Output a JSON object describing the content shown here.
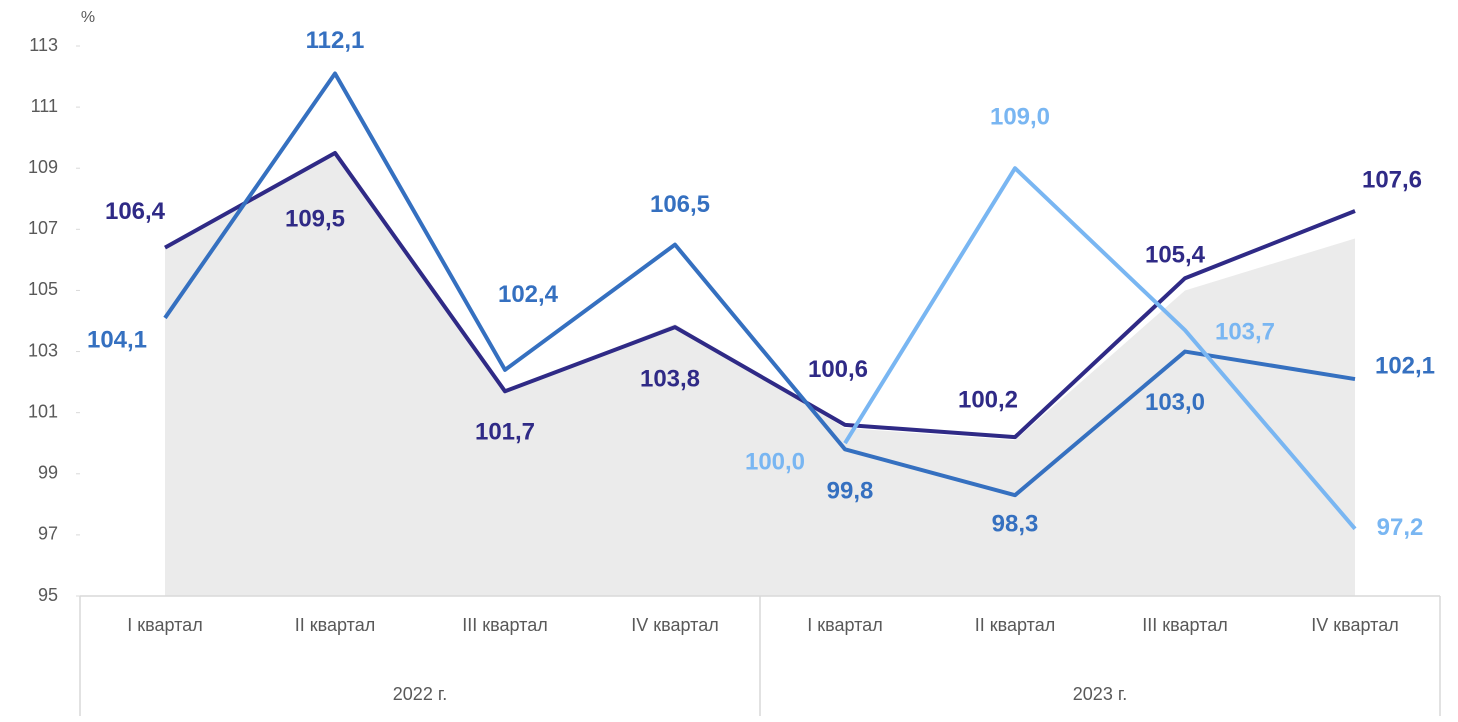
{
  "chart_data": {
    "type": "line",
    "y_label": "%",
    "categories": [
      "I квартал",
      "II квартал",
      "III квартал",
      "IV квартал",
      "I квартал",
      "II квартал",
      "III квартал",
      "IV квартал"
    ],
    "groups": [
      {
        "label": "2022 г.",
        "span": 4
      },
      {
        "label": "2023 г.",
        "span": 4
      }
    ],
    "ylim": [
      95,
      113
    ],
    "yticks": [
      95,
      97,
      99,
      101,
      103,
      105,
      107,
      109,
      111,
      113
    ],
    "grid": false,
    "area": {
      "color": "#ebebeb",
      "values": [
        106.4,
        109.5,
        101.7,
        103.9,
        100.5,
        100.1,
        105.0,
        106.7
      ]
    },
    "series": [
      {
        "color": "#2f2a86",
        "values": [
          106.4,
          109.5,
          101.7,
          103.8,
          100.6,
          100.2,
          105.4,
          107.6
        ],
        "value_labels": [
          "106,4",
          "109,5",
          "101,7",
          "103,8",
          "100,6",
          "100,2",
          "105,4",
          "107,6"
        ]
      },
      {
        "color": "#3570c0",
        "values": [
          104.1,
          112.1,
          102.4,
          106.5,
          99.8,
          98.3,
          103.0,
          102.1
        ],
        "value_labels": [
          "104,1",
          "112,1",
          "102,4",
          "106,5",
          "99,8",
          "98,3",
          "103,0",
          "102,1"
        ]
      },
      {
        "color": "#79b6f2",
        "values": [
          null,
          null,
          null,
          null,
          100.0,
          109.0,
          103.7,
          97.2
        ],
        "value_labels": [
          null,
          null,
          null,
          null,
          "100,0",
          "109,0",
          "103,7",
          "97,2"
        ]
      }
    ]
  }
}
